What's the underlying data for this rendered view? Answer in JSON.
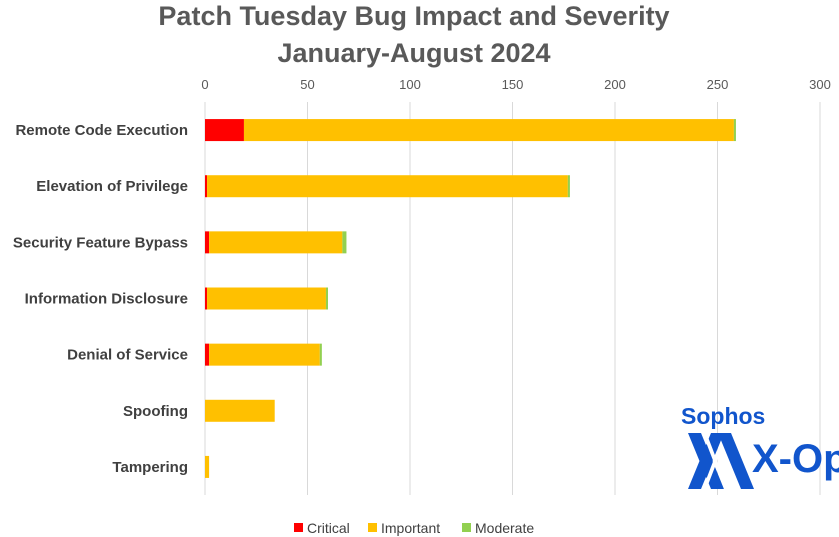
{
  "chart_data": {
    "type": "bar",
    "orientation": "horizontal",
    "stacked": true,
    "title": "Patch Tuesday Bug Impact and Severity",
    "subtitle": "January-August 2024",
    "categories": [
      "Remote Code Execution",
      "Elevation of Privilege",
      "Security Feature Bypass",
      "Information Disclosure",
      "Denial of Service",
      "Spoofing",
      "Tampering"
    ],
    "series": [
      {
        "name": "Critical",
        "color": "#ff0000",
        "values": [
          19,
          1,
          2,
          1,
          2,
          0,
          0
        ]
      },
      {
        "name": "Important",
        "color": "#ffc000",
        "values": [
          239,
          176,
          65,
          58,
          54,
          34,
          2
        ]
      },
      {
        "name": "Moderate",
        "color": "#92d050",
        "values": [
          1,
          1,
          2,
          1,
          1,
          0,
          0
        ]
      }
    ],
    "xlim": [
      0,
      300
    ],
    "xticks": [
      0,
      50,
      100,
      150,
      200,
      250,
      300
    ],
    "grid": "vertical",
    "x_axis_position": "top",
    "legend": "bottom"
  },
  "logo": {
    "top": "Sophos",
    "bottom": "X-Ops",
    "color": "#1155cc"
  }
}
